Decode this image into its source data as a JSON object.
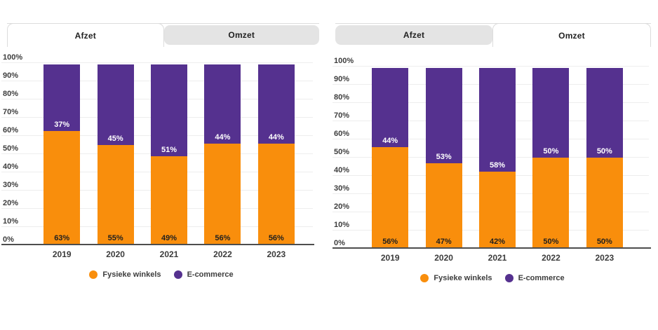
{
  "window": {
    "background": "#ffffff"
  },
  "colors": {
    "orange": "#F98E0C",
    "purple": "#55318F",
    "tab_inactive_bg": "#E4E4E4",
    "tab_active_bg": "#FFFFFF",
    "tab_border": "#DCDCDC",
    "grid_line": "#EDEDED",
    "axis_line": "#4D4D4D",
    "text_dark": "#222222",
    "text_medium": "#3D3D3D",
    "label_dark": "#1F1F1F",
    "label_on_purple": "#FFFFFF"
  },
  "panels": [
    {
      "name": "afzet",
      "tabs": [
        {
          "label": "Afzet",
          "active": true
        },
        {
          "label": "Omzet",
          "active": false
        }
      ]
    },
    {
      "name": "omzet",
      "tabs": [
        {
          "label": "Afzet",
          "active": false
        },
        {
          "label": "Omzet",
          "active": true
        }
      ]
    }
  ],
  "chart_data": [
    {
      "type": "bar",
      "stacked": true,
      "title": "Afzet",
      "categories": [
        "2019",
        "2020",
        "2021",
        "2022",
        "2023"
      ],
      "series": [
        {
          "name": "Fysieke winkels",
          "color_key": "orange",
          "values": [
            63,
            55,
            49,
            56,
            56
          ]
        },
        {
          "name": "E-commerce",
          "color_key": "purple",
          "values": [
            37,
            45,
            51,
            44,
            44
          ]
        }
      ],
      "value_suffix": "%",
      "ylim": [
        0,
        100
      ],
      "y_tick_step": 10,
      "y_tick_labels": [
        "0%",
        "10%",
        "20%",
        "30%",
        "40%",
        "50%",
        "60%",
        "70%",
        "80%",
        "90%",
        "100%"
      ],
      "grid": true,
      "data_labels": true,
      "legend_position": "bottom"
    },
    {
      "type": "bar",
      "stacked": true,
      "title": "Omzet",
      "categories": [
        "2019",
        "2020",
        "2021",
        "2022",
        "2023"
      ],
      "series": [
        {
          "name": "Fysieke winkels",
          "color_key": "orange",
          "values": [
            56,
            47,
            42,
            50,
            50
          ]
        },
        {
          "name": "E-commerce",
          "color_key": "purple",
          "values": [
            44,
            53,
            58,
            50,
            50
          ]
        }
      ],
      "value_suffix": "%",
      "ylim": [
        0,
        100
      ],
      "y_tick_step": 10,
      "y_tick_labels": [
        "0%",
        "10%",
        "20%",
        "30%",
        "40%",
        "50%",
        "60%",
        "70%",
        "80%",
        "90%",
        "100%"
      ],
      "grid": true,
      "data_labels": true,
      "legend_position": "bottom"
    }
  ]
}
